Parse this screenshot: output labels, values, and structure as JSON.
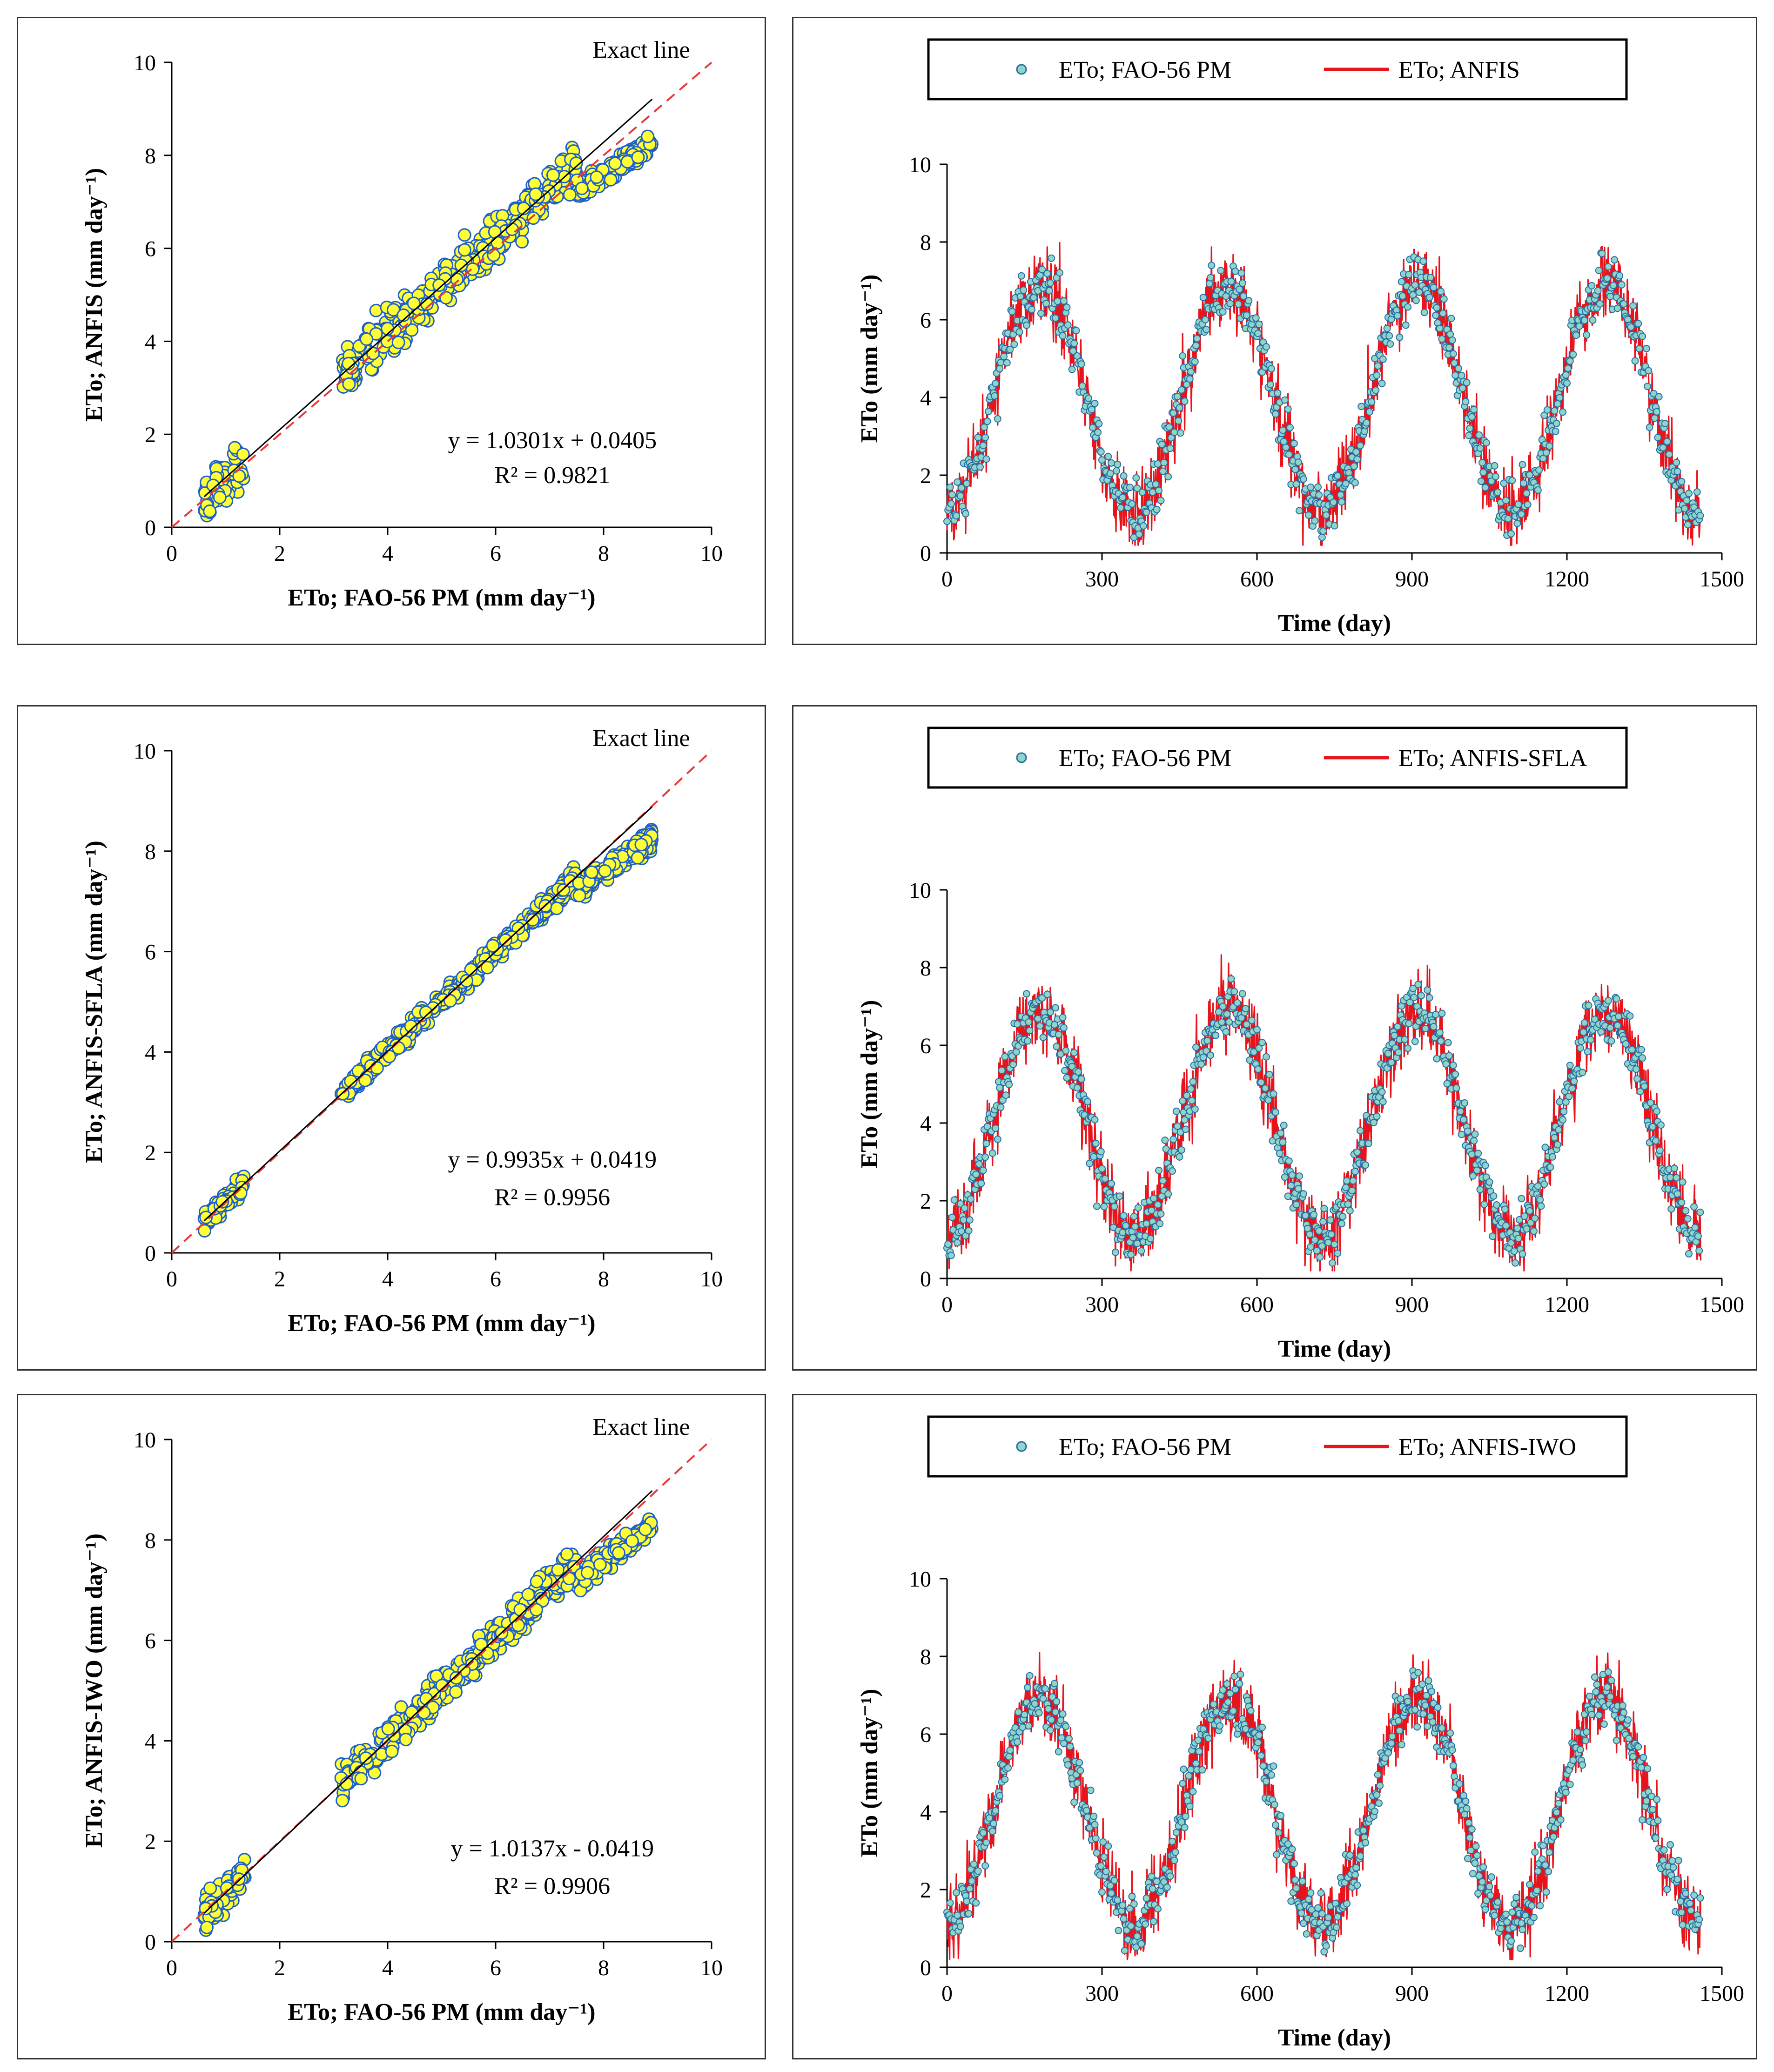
{
  "colors": {
    "scatter_fill": "#ffff33",
    "scatter_edge": "#1e5fcc",
    "ts_marker_fill": "#8fd6c8",
    "ts_marker_edge": "#2b6ea6",
    "ts_line": "#e8141b",
    "exact_line": "#e83a3a",
    "fit_line": "#000000",
    "axis": "#000000"
  },
  "chart_data": [
    {
      "type": "scatter",
      "model": "ANFIS",
      "xlabel": "ETo; FAO-56 PM (mm day⁻¹)",
      "ylabel": "ETo; ANFIS (mm day⁻¹)",
      "xlim": [
        0,
        10
      ],
      "ylim": [
        0,
        10
      ],
      "xticks": [
        "0",
        "2",
        "4",
        "6",
        "8",
        "10"
      ],
      "yticks": [
        "0",
        "2",
        "4",
        "6",
        "8",
        "10"
      ],
      "exact_line_label": "Exact line",
      "equation": "y = 1.0301x + 0.0405",
      "r2": "R² = 0.9821",
      "fit": {
        "slope": 1.0301,
        "intercept": 0.0405,
        "x_range": [
          0.6,
          8.9
        ]
      },
      "point_spread": 0.35,
      "point_count": 620
    },
    {
      "type": "line",
      "legend": [
        "ETo; FAO-56 PM",
        "ETo; ANFIS"
      ],
      "xlabel": "Time (day)",
      "ylabel": "ETo (mm day⁻¹)",
      "xlim": [
        0,
        1500
      ],
      "ylim": [
        0,
        10
      ],
      "xticks": [
        "0",
        "300",
        "600",
        "900",
        "1200",
        "1500"
      ],
      "yticks": [
        "0",
        "2",
        "4",
        "6",
        "8",
        "10"
      ],
      "days": 1460,
      "seasonal_mean": 4.0,
      "seasonal_amplitude": 2.9,
      "period_days": 365,
      "peak_day": 180,
      "noise": 0.55
    },
    {
      "type": "scatter",
      "model": "ANFIS-SFLA",
      "xlabel": "ETo; FAO-56 PM (mm day⁻¹)",
      "ylabel": "ETo; ANFIS-SFLA (mm day⁻¹)",
      "xlim": [
        0,
        10
      ],
      "ylim": [
        0,
        10
      ],
      "xticks": [
        "0",
        "2",
        "4",
        "6",
        "8",
        "10"
      ],
      "yticks": [
        "0",
        "2",
        "4",
        "6",
        "8",
        "10"
      ],
      "exact_line_label": "Exact line",
      "equation": "y = 0.9935x + 0.0419",
      "r2": "R² = 0.9956",
      "fit": {
        "slope": 0.9935,
        "intercept": 0.0419,
        "x_range": [
          0.6,
          8.9
        ]
      },
      "point_spread": 0.15,
      "point_count": 620
    },
    {
      "type": "line",
      "legend": [
        "ETo; FAO-56 PM",
        "ETo; ANFIS-SFLA"
      ],
      "xlabel": "Time (day)",
      "ylabel": "ETo (mm day⁻¹)",
      "xlim": [
        0,
        1500
      ],
      "ylim": [
        0,
        10
      ],
      "xticks": [
        "0",
        "300",
        "600",
        "900",
        "1200",
        "1500"
      ],
      "yticks": [
        "0",
        "2",
        "4",
        "6",
        "8",
        "10"
      ],
      "days": 1460,
      "seasonal_mean": 4.0,
      "seasonal_amplitude": 2.9,
      "period_days": 365,
      "peak_day": 180,
      "noise": 0.55
    },
    {
      "type": "scatter",
      "model": "ANFIS-IWO",
      "xlabel": "ETo; FAO-56 PM (mm day⁻¹)",
      "ylabel": "ETo; ANFIS-IWO (mm day⁻¹)",
      "xlim": [
        0,
        10
      ],
      "ylim": [
        0,
        10
      ],
      "xticks": [
        "0",
        "2",
        "4",
        "6",
        "8",
        "10"
      ],
      "yticks": [
        "0",
        "2",
        "4",
        "6",
        "8",
        "10"
      ],
      "exact_line_label": "Exact line",
      "equation": "y = 1.0137x - 0.0419",
      "r2": "R² = 0.9906",
      "fit": {
        "slope": 1.0137,
        "intercept": -0.0419,
        "x_range": [
          0.6,
          8.9
        ]
      },
      "point_spread": 0.25,
      "point_count": 620
    },
    {
      "type": "line",
      "legend": [
        "ETo; FAO-56 PM",
        "ETo; ANFIS-IWO"
      ],
      "xlabel": "Time (day)",
      "ylabel": "ETo (mm day⁻¹)",
      "xlim": [
        0,
        1500
      ],
      "ylim": [
        0,
        10
      ],
      "xticks": [
        "0",
        "300",
        "600",
        "900",
        "1200",
        "1500"
      ],
      "yticks": [
        "0",
        "2",
        "4",
        "6",
        "8",
        "10"
      ],
      "days": 1460,
      "seasonal_mean": 4.0,
      "seasonal_amplitude": 2.9,
      "period_days": 365,
      "peak_day": 180,
      "noise": 0.55
    }
  ]
}
